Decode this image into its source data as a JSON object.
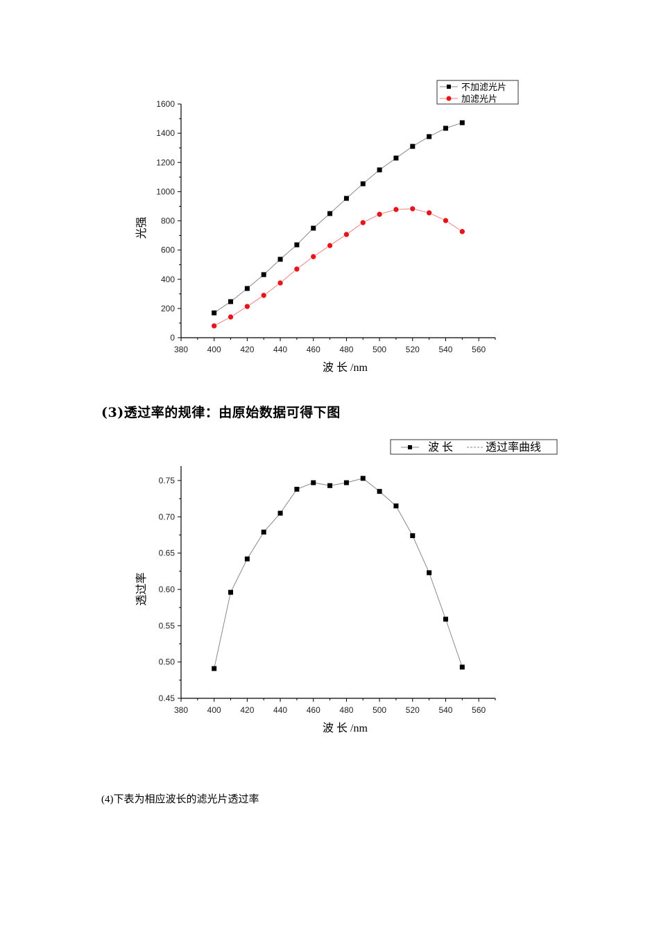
{
  "heading": "(3)透过率的规律：由原始数据可得下图",
  "caption": "(4)下表为相应波长的滤光片透过率",
  "chart_data": [
    {
      "type": "line",
      "title": "",
      "xlabel": "波 长 /nm",
      "ylabel": "光强",
      "xlim": [
        380,
        570
      ],
      "ylim": [
        0,
        1600
      ],
      "xticks": [
        380,
        400,
        420,
        440,
        460,
        480,
        500,
        520,
        540,
        560
      ],
      "yticks": [
        0,
        200,
        400,
        600,
        800,
        1000,
        1200,
        1400,
        1600
      ],
      "grid": false,
      "legend_position": "top-right",
      "x": [
        400,
        410,
        420,
        430,
        440,
        450,
        460,
        470,
        480,
        490,
        500,
        510,
        520,
        530,
        540,
        550
      ],
      "series": [
        {
          "name": "不加滤光片",
          "marker": "square",
          "color": "#000000",
          "line_color": "#888888",
          "values": [
            170,
            247,
            337,
            432,
            537,
            636,
            750,
            850,
            954,
            1054,
            1149,
            1230,
            1310,
            1377,
            1434,
            1472
          ]
        },
        {
          "name": "加滤光片",
          "marker": "circle",
          "color": "#e8141c",
          "line_color": "#f08080",
          "values": [
            81,
            142,
            214,
            290,
            375,
            470,
            555,
            631,
            707,
            788,
            845,
            878,
            883,
            855,
            802,
            727
          ]
        }
      ]
    },
    {
      "type": "line",
      "title": "",
      "xlabel": "波 长 /nm",
      "ylabel": "透过率",
      "xlim": [
        380,
        570
      ],
      "ylim": [
        0.45,
        0.77
      ],
      "xticks": [
        380,
        400,
        420,
        440,
        460,
        480,
        500,
        520,
        540,
        560
      ],
      "yticks": [
        0.45,
        0.5,
        0.55,
        0.6,
        0.65,
        0.7,
        0.75
      ],
      "grid": false,
      "legend_position": "top-right",
      "legend_entries": [
        "波 长",
        "透过率曲线"
      ],
      "x": [
        400,
        410,
        420,
        430,
        440,
        450,
        460,
        470,
        480,
        490,
        500,
        510,
        520,
        530,
        540,
        550
      ],
      "series": [
        {
          "name": "透过率曲线",
          "marker": "square",
          "color": "#000000",
          "line_color": "#888888",
          "values": [
            0.491,
            0.596,
            0.642,
            0.679,
            0.705,
            0.738,
            0.747,
            0.743,
            0.747,
            0.753,
            0.735,
            0.715,
            0.674,
            0.623,
            0.559,
            0.493
          ]
        }
      ]
    }
  ]
}
